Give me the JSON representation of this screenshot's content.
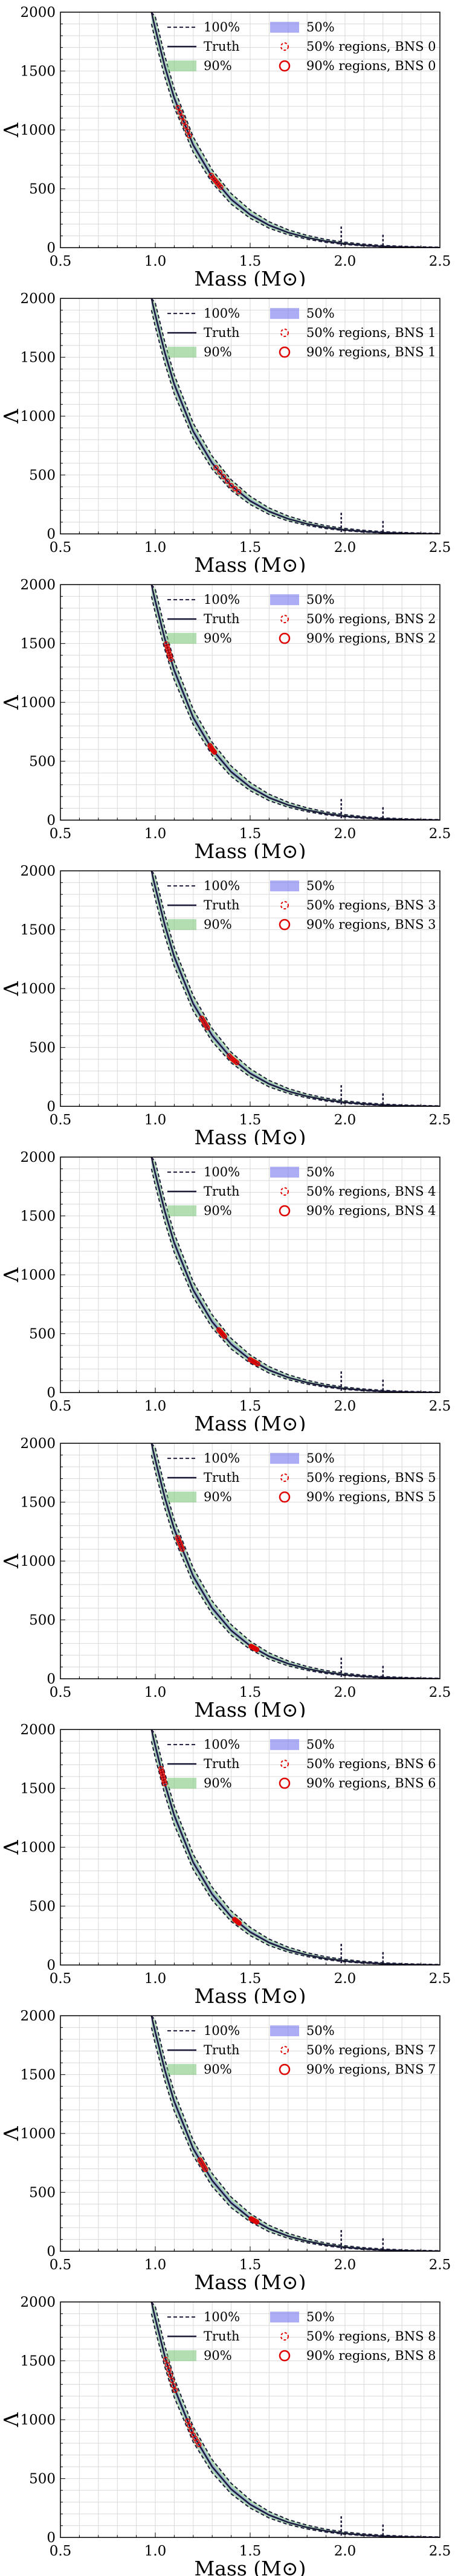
{
  "legend_entries": {
    "hundred": "100%",
    "truth": "Truth",
    "ninety": "90%",
    "fifty": "50%",
    "fifty_region_prefix": "50% regions, ",
    "ninety_region_prefix": "90% regions, "
  },
  "colors": {
    "truth_line": "#1c1c3a",
    "band_90": "#7ec87e",
    "band_50": "#7777ee",
    "region_marker": "#e00000",
    "grid": "#d9d9d9"
  },
  "chart_data": [
    {
      "type": "line",
      "name": "BNS 0",
      "xlabel": "Mass (M⊙)",
      "ylabel": "Λ",
      "xlim": [
        0.5,
        2.5
      ],
      "ylim": [
        0,
        2000
      ],
      "xticks": [
        "0.5",
        "1.0",
        "1.5",
        "2.0",
        "2.5"
      ],
      "yticks": [
        "0",
        "500",
        "1000",
        "1500",
        "2000"
      ],
      "grid": true,
      "legend_position": "top-right",
      "truth": {
        "m": [
          0.98,
          1.0,
          1.05,
          1.1,
          1.2,
          1.3,
          1.4,
          1.5,
          1.6,
          1.7,
          1.8,
          1.9,
          2.0,
          2.1,
          2.2,
          2.3,
          2.4,
          2.5
        ],
        "lambda": [
          2000,
          1860,
          1540,
          1270,
          870,
          600,
          410,
          280,
          190,
          128,
          85,
          55,
          34,
          20,
          11,
          5,
          2,
          0
        ]
      },
      "upper_edge_100": [
        2000,
        1960,
        1630,
        1350,
        940,
        660,
        460,
        320,
        220,
        152,
        104,
        70,
        46,
        30,
        19,
        12,
        7,
        4
      ],
      "lower_edge_100": [
        1900,
        1760,
        1450,
        1190,
        810,
        550,
        370,
        250,
        165,
        110,
        72,
        45,
        27,
        15,
        8,
        3,
        1,
        0
      ],
      "max_mass_markers": [
        {
          "m": 1.98,
          "lambda": 180
        },
        {
          "m": 2.2,
          "lambda": 110
        }
      ],
      "regions": [
        {
          "m_center": 1.15,
          "lambda_center": 1000,
          "m_spread": 0.03,
          "lambda_spread": 160
        },
        {
          "m_center": 1.32,
          "lambda_center": 460,
          "m_spread": 0.025,
          "lambda_spread": 70
        }
      ]
    },
    {
      "type": "line",
      "name": "BNS 1",
      "xlabel": "Mass (M⊙)",
      "ylabel": "Λ",
      "xlim": [
        0.5,
        2.5
      ],
      "ylim": [
        0,
        2000
      ],
      "xticks": [
        "0.5",
        "1.0",
        "1.5",
        "2.0",
        "2.5"
      ],
      "yticks": [
        "0",
        "500",
        "1000",
        "1500",
        "2000"
      ],
      "grid": true,
      "legend_position": "top-right",
      "truth": {
        "m": [
          0.98,
          1.0,
          1.05,
          1.1,
          1.2,
          1.3,
          1.4,
          1.5,
          1.6,
          1.7,
          1.8,
          1.9,
          2.0,
          2.1,
          2.2,
          2.3,
          2.4,
          2.5
        ],
        "lambda": [
          2000,
          1860,
          1540,
          1270,
          870,
          600,
          410,
          280,
          190,
          128,
          85,
          55,
          34,
          20,
          11,
          5,
          2,
          0
        ]
      },
      "upper_edge_100": [
        2000,
        1960,
        1630,
        1350,
        940,
        660,
        460,
        320,
        220,
        152,
        104,
        70,
        46,
        30,
        19,
        12,
        7,
        4
      ],
      "lower_edge_100": [
        1900,
        1760,
        1450,
        1190,
        810,
        550,
        370,
        250,
        165,
        110,
        72,
        45,
        27,
        15,
        8,
        3,
        1,
        0
      ],
      "max_mass_markers": [
        {
          "m": 1.98,
          "lambda": 180
        },
        {
          "m": 2.2,
          "lambda": 110
        }
      ],
      "regions": [
        {
          "m_center": 1.38,
          "lambda_center": 310,
          "m_spread": 0.06,
          "lambda_spread": 80
        }
      ]
    },
    {
      "type": "line",
      "name": "BNS 2",
      "xlabel": "Mass (M⊙)",
      "ylabel": "Λ",
      "xlim": [
        0.5,
        2.5
      ],
      "ylim": [
        0,
        2000
      ],
      "xticks": [
        "0.5",
        "1.0",
        "1.5",
        "2.0",
        "2.5"
      ],
      "yticks": [
        "0",
        "500",
        "1000",
        "1500",
        "2000"
      ],
      "grid": true,
      "legend_position": "top-right",
      "truth": {
        "m": [
          0.98,
          1.0,
          1.05,
          1.1,
          1.2,
          1.3,
          1.4,
          1.5,
          1.6,
          1.7,
          1.8,
          1.9,
          2.0,
          2.1,
          2.2,
          2.3,
          2.4,
          2.5
        ],
        "lambda": [
          2000,
          1860,
          1540,
          1270,
          870,
          600,
          410,
          280,
          190,
          128,
          85,
          55,
          34,
          20,
          11,
          5,
          2,
          0
        ]
      },
      "upper_edge_100": [
        2000,
        1960,
        1630,
        1350,
        940,
        660,
        460,
        320,
        220,
        152,
        104,
        70,
        46,
        30,
        19,
        12,
        7,
        4
      ],
      "lower_edge_100": [
        1900,
        1760,
        1450,
        1190,
        810,
        550,
        370,
        250,
        165,
        110,
        72,
        45,
        27,
        15,
        8,
        3,
        1,
        0
      ],
      "max_mass_markers": [
        {
          "m": 1.98,
          "lambda": 180
        },
        {
          "m": 2.2,
          "lambda": 110
        }
      ],
      "regions": [
        {
          "m_center": 1.07,
          "lambda_center": 1450,
          "m_spread": 0.012,
          "lambda_spread": 160
        },
        {
          "m_center": 1.3,
          "lambda_center": 490,
          "m_spread": 0.012,
          "lambda_spread": 35
        }
      ]
    },
    {
      "type": "line",
      "name": "BNS 3",
      "xlabel": "Mass (M⊙)",
      "ylabel": "Λ",
      "xlim": [
        0.5,
        2.5
      ],
      "ylim": [
        0,
        2000
      ],
      "xticks": [
        "0.5",
        "1.0",
        "1.5",
        "2.0",
        "2.5"
      ],
      "yticks": [
        "0",
        "500",
        "1000",
        "1500",
        "2000"
      ],
      "grid": true,
      "legend_position": "top-right",
      "truth": {
        "m": [
          0.98,
          1.0,
          1.05,
          1.1,
          1.2,
          1.3,
          1.4,
          1.5,
          1.6,
          1.7,
          1.8,
          1.9,
          2.0,
          2.1,
          2.2,
          2.3,
          2.4,
          2.5
        ],
        "lambda": [
          2000,
          1860,
          1540,
          1270,
          870,
          600,
          410,
          280,
          190,
          128,
          85,
          55,
          34,
          20,
          11,
          5,
          2,
          0
        ]
      },
      "upper_edge_100": [
        2000,
        1960,
        1630,
        1350,
        940,
        660,
        460,
        320,
        220,
        152,
        104,
        70,
        46,
        30,
        19,
        12,
        7,
        4
      ],
      "lower_edge_100": [
        1900,
        1760,
        1450,
        1190,
        810,
        550,
        370,
        250,
        165,
        110,
        72,
        45,
        27,
        15,
        8,
        3,
        1,
        0
      ],
      "max_mass_markers": [
        {
          "m": 1.98,
          "lambda": 180
        },
        {
          "m": 2.2,
          "lambda": 110
        }
      ],
      "regions": [
        {
          "m_center": 1.26,
          "lambda_center": 650,
          "m_spread": 0.015,
          "lambda_spread": 45
        },
        {
          "m_center": 1.41,
          "lambda_center": 280,
          "m_spread": 0.02,
          "lambda_spread": 30
        }
      ]
    },
    {
      "type": "line",
      "name": "BNS 4",
      "xlabel": "Mass (M⊙)",
      "ylabel": "Λ",
      "xlim": [
        0.5,
        2.5
      ],
      "ylim": [
        0,
        2000
      ],
      "xticks": [
        "0.5",
        "1.0",
        "1.5",
        "2.0",
        "2.5"
      ],
      "yticks": [
        "0",
        "500",
        "1000",
        "1500",
        "2000"
      ],
      "grid": true,
      "legend_position": "top-right",
      "truth": {
        "m": [
          0.98,
          1.0,
          1.05,
          1.1,
          1.2,
          1.3,
          1.4,
          1.5,
          1.6,
          1.7,
          1.8,
          1.9,
          2.0,
          2.1,
          2.2,
          2.3,
          2.4,
          2.5
        ],
        "lambda": [
          2000,
          1860,
          1540,
          1270,
          870,
          600,
          410,
          280,
          190,
          128,
          85,
          55,
          34,
          20,
          11,
          5,
          2,
          0
        ]
      },
      "upper_edge_100": [
        2000,
        1960,
        1630,
        1350,
        940,
        660,
        460,
        320,
        220,
        152,
        104,
        70,
        46,
        30,
        19,
        12,
        7,
        4
      ],
      "lower_edge_100": [
        1900,
        1760,
        1450,
        1190,
        810,
        550,
        370,
        250,
        165,
        110,
        72,
        45,
        27,
        15,
        8,
        3,
        1,
        0
      ],
      "max_mass_markers": [
        {
          "m": 1.98,
          "lambda": 180
        },
        {
          "m": 2.2,
          "lambda": 110
        }
      ],
      "regions": [
        {
          "m_center": 1.35,
          "lambda_center": 310,
          "m_spread": 0.015,
          "lambda_spread": 25
        },
        {
          "m_center": 1.52,
          "lambda_center": 120,
          "m_spread": 0.02,
          "lambda_spread": 15
        }
      ]
    },
    {
      "type": "line",
      "name": "BNS 5",
      "xlabel": "Mass (M⊙)",
      "ylabel": "Λ",
      "xlim": [
        0.5,
        2.5
      ],
      "ylim": [
        0,
        2000
      ],
      "xticks": [
        "0.5",
        "1.0",
        "1.5",
        "2.0",
        "2.5"
      ],
      "yticks": [
        "0",
        "500",
        "1000",
        "1500",
        "2000"
      ],
      "grid": true,
      "legend_position": "top-right",
      "truth": {
        "m": [
          0.98,
          1.0,
          1.05,
          1.1,
          1.2,
          1.3,
          1.4,
          1.5,
          1.6,
          1.7,
          1.8,
          1.9,
          2.0,
          2.1,
          2.2,
          2.3,
          2.4,
          2.5
        ],
        "lambda": [
          2000,
          1860,
          1540,
          1270,
          870,
          600,
          410,
          280,
          190,
          128,
          85,
          55,
          34,
          20,
          11,
          5,
          2,
          0
        ]
      },
      "upper_edge_100": [
        2000,
        1960,
        1630,
        1350,
        940,
        660,
        460,
        320,
        220,
        152,
        104,
        70,
        46,
        30,
        19,
        12,
        7,
        4
      ],
      "lower_edge_100": [
        1900,
        1760,
        1450,
        1190,
        810,
        550,
        370,
        250,
        165,
        110,
        72,
        45,
        27,
        15,
        8,
        3,
        1,
        0
      ],
      "max_mass_markers": [
        {
          "m": 1.98,
          "lambda": 180
        },
        {
          "m": 2.2,
          "lambda": 110
        }
      ],
      "regions": [
        {
          "m_center": 1.13,
          "lambda_center": 1120,
          "m_spread": 0.012,
          "lambda_spread": 80
        },
        {
          "m_center": 1.52,
          "lambda_center": 200,
          "m_spread": 0.015,
          "lambda_spread": 20
        }
      ]
    },
    {
      "type": "line",
      "name": "BNS 6",
      "xlabel": "Mass (M⊙)",
      "ylabel": "Λ",
      "xlim": [
        0.5,
        2.5
      ],
      "ylim": [
        0,
        2000
      ],
      "xticks": [
        "0.5",
        "1.0",
        "1.5",
        "2.0",
        "2.5"
      ],
      "yticks": [
        "0",
        "500",
        "1000",
        "1500",
        "2000"
      ],
      "grid": true,
      "legend_position": "top-right",
      "truth": {
        "m": [
          0.98,
          1.0,
          1.05,
          1.1,
          1.2,
          1.3,
          1.4,
          1.5,
          1.6,
          1.7,
          1.8,
          1.9,
          2.0,
          2.1,
          2.2,
          2.3,
          2.4,
          2.5
        ],
        "lambda": [
          2000,
          1860,
          1540,
          1270,
          870,
          600,
          410,
          280,
          190,
          128,
          85,
          55,
          34,
          20,
          11,
          5,
          2,
          0
        ]
      },
      "upper_edge_100": [
        2000,
        1960,
        1630,
        1350,
        940,
        660,
        460,
        320,
        220,
        152,
        104,
        70,
        46,
        30,
        19,
        12,
        7,
        4
      ],
      "lower_edge_100": [
        1900,
        1760,
        1450,
        1190,
        810,
        550,
        370,
        250,
        165,
        110,
        72,
        45,
        27,
        15,
        8,
        3,
        1,
        0
      ],
      "max_mass_markers": [
        {
          "m": 1.98,
          "lambda": 180
        },
        {
          "m": 2.2,
          "lambda": 110
        }
      ],
      "regions": [
        {
          "m_center": 1.04,
          "lambda_center": 1680,
          "m_spread": 0.01,
          "lambda_spread": 80
        },
        {
          "m_center": 1.43,
          "lambda_center": 280,
          "m_spread": 0.012,
          "lambda_spread": 15
        }
      ]
    },
    {
      "type": "line",
      "name": "BNS 7",
      "xlabel": "Mass (M⊙)",
      "ylabel": "Λ",
      "xlim": [
        0.5,
        2.5
      ],
      "ylim": [
        0,
        2000
      ],
      "xticks": [
        "0.5",
        "1.0",
        "1.5",
        "2.0",
        "2.5"
      ],
      "yticks": [
        "0",
        "500",
        "1000",
        "1500",
        "2000"
      ],
      "grid": true,
      "legend_position": "top-right",
      "truth": {
        "m": [
          0.98,
          1.0,
          1.05,
          1.1,
          1.2,
          1.3,
          1.4,
          1.5,
          1.6,
          1.7,
          1.8,
          1.9,
          2.0,
          2.1,
          2.2,
          2.3,
          2.4,
          2.5
        ],
        "lambda": [
          2000,
          1860,
          1540,
          1270,
          870,
          600,
          410,
          280,
          190,
          128,
          85,
          55,
          34,
          20,
          11,
          5,
          2,
          0
        ]
      },
      "upper_edge_100": [
        2000,
        1960,
        1630,
        1350,
        940,
        660,
        460,
        320,
        220,
        152,
        104,
        70,
        46,
        30,
        19,
        12,
        7,
        4
      ],
      "lower_edge_100": [
        1900,
        1760,
        1450,
        1190,
        810,
        550,
        370,
        250,
        165,
        110,
        72,
        45,
        27,
        15,
        8,
        3,
        1,
        0
      ],
      "max_mass_markers": [
        {
          "m": 1.98,
          "lambda": 180
        },
        {
          "m": 2.2,
          "lambda": 110
        }
      ],
      "regions": [
        {
          "m_center": 1.25,
          "lambda_center": 590,
          "m_spread": 0.015,
          "lambda_spread": 45
        },
        {
          "m_center": 1.52,
          "lambda_center": 190,
          "m_spread": 0.015,
          "lambda_spread": 20
        }
      ]
    },
    {
      "type": "line",
      "name": "BNS 8",
      "xlabel": "Mass (M⊙)",
      "ylabel": "Λ",
      "xlim": [
        0.5,
        2.5
      ],
      "ylim": [
        0,
        2000
      ],
      "xticks": [
        "0.5",
        "1.0",
        "1.5",
        "2.0",
        "2.5"
      ],
      "yticks": [
        "0",
        "500",
        "1000",
        "1500",
        "2000"
      ],
      "grid": true,
      "legend_position": "top-right",
      "truth": {
        "m": [
          0.98,
          1.0,
          1.05,
          1.1,
          1.2,
          1.3,
          1.4,
          1.5,
          1.6,
          1.7,
          1.8,
          1.9,
          2.0,
          2.1,
          2.2,
          2.3,
          2.4,
          2.5
        ],
        "lambda": [
          2000,
          1860,
          1540,
          1270,
          870,
          600,
          410,
          280,
          190,
          128,
          85,
          55,
          34,
          20,
          11,
          5,
          2,
          0
        ]
      },
      "upper_edge_100": [
        2000,
        1960,
        1630,
        1350,
        940,
        660,
        460,
        320,
        220,
        152,
        104,
        70,
        46,
        30,
        19,
        12,
        7,
        4
      ],
      "lower_edge_100": [
        1900,
        1760,
        1450,
        1190,
        810,
        550,
        370,
        250,
        165,
        110,
        72,
        45,
        27,
        15,
        8,
        3,
        1,
        0
      ],
      "max_mass_markers": [
        {
          "m": 1.98,
          "lambda": 180
        },
        {
          "m": 2.2,
          "lambda": 110
        }
      ],
      "regions": [
        {
          "m_center": 1.08,
          "lambda_center": 1480,
          "m_spread": 0.025,
          "lambda_spread": 200
        },
        {
          "m_center": 1.2,
          "lambda_center": 800,
          "m_spread": 0.03,
          "lambda_spread": 110
        }
      ]
    }
  ]
}
